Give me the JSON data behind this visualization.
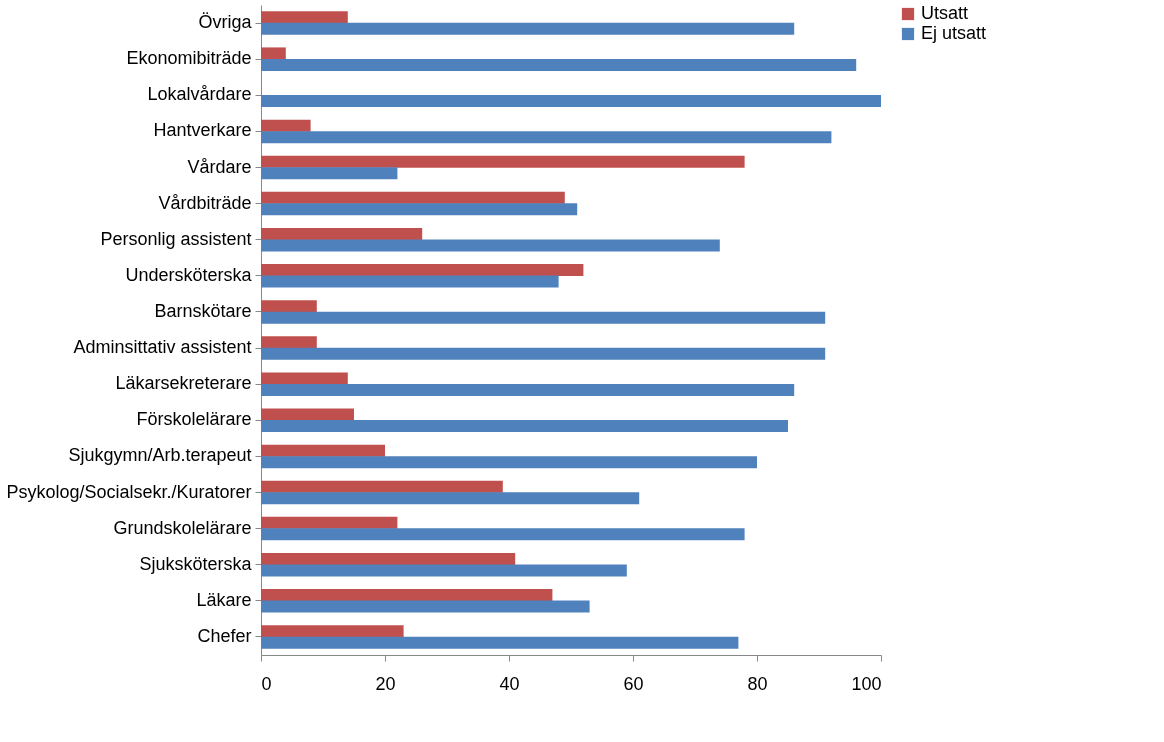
{
  "chart_data": {
    "type": "bar",
    "orientation": "horizontal",
    "categories": [
      "Övriga",
      "Ekonomibiträde",
      "Lokalvårdare",
      "Hantverkare",
      "Vårdare",
      "Vårdbiträde",
      "Personlig assistent",
      "Undersköterska",
      "Barnskötare",
      "Adminsittativ assistent",
      "Läkarsekreterare",
      "Förskolelärare",
      "Sjukgymn/Arb.terapeut",
      "Psykolog/Socialsekr./Kuratorer",
      "Grundskolelärare",
      "Sjuksköterska",
      "Läkare",
      "Chefer"
    ],
    "series": [
      {
        "name": "Utsatt",
        "color": "#c0504d",
        "values": [
          14,
          4,
          0,
          8,
          78,
          49,
          26,
          52,
          9,
          9,
          14,
          15,
          20,
          39,
          22,
          41,
          47,
          23
        ]
      },
      {
        "name": "Ej utsatt",
        "color": "#4f81bd",
        "values": [
          86,
          96,
          100,
          92,
          22,
          51,
          74,
          48,
          91,
          91,
          86,
          85,
          80,
          61,
          78,
          59,
          53,
          77
        ]
      }
    ],
    "xlim": [
      0,
      100
    ],
    "xticks": [
      0,
      20,
      40,
      60,
      80,
      100
    ],
    "grid": false,
    "legend": "right"
  }
}
